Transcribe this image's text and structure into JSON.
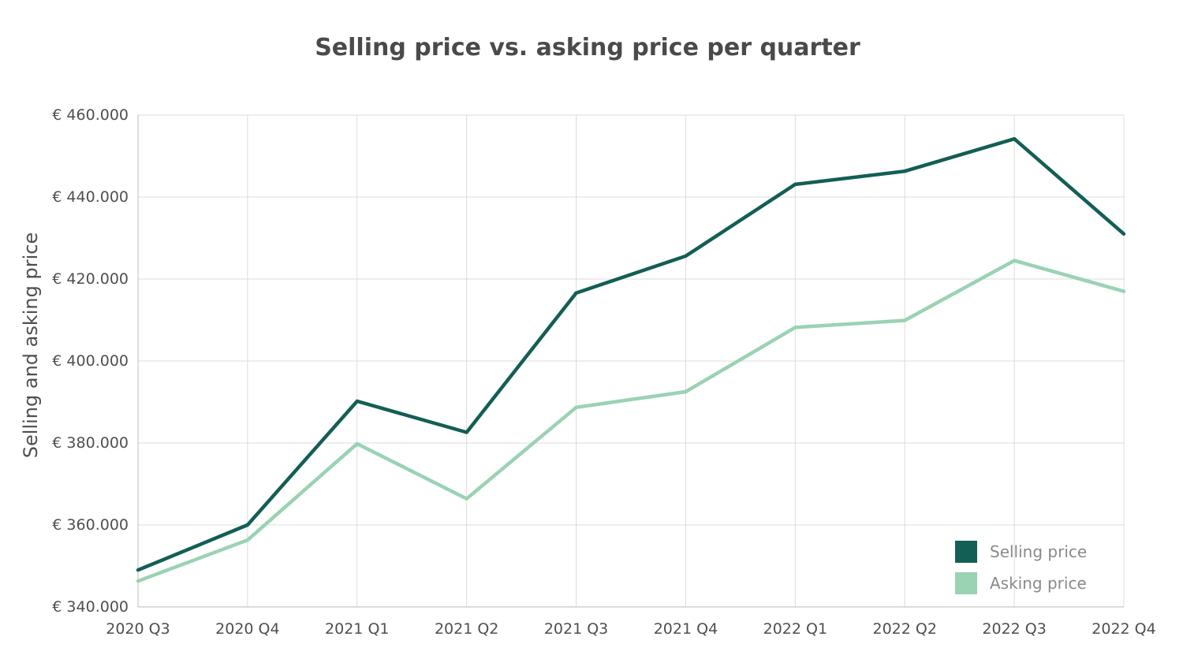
{
  "chart_data": {
    "type": "line",
    "title": "Selling price vs. asking price per quarter",
    "xlabel": "",
    "ylabel": "Selling and asking price",
    "categories": [
      "2020 Q3",
      "2020 Q4",
      "2021 Q1",
      "2021 Q2",
      "2021 Q3",
      "2021 Q4",
      "2022 Q1",
      "2022 Q2",
      "2022 Q3",
      "2022 Q4"
    ],
    "ylim": [
      340000,
      460000
    ],
    "yticks": [
      340000,
      360000,
      380000,
      400000,
      420000,
      440000,
      460000
    ],
    "ytick_labels": [
      "€ 340.000",
      "€ 360.000",
      "€ 380.000",
      "€ 400.000",
      "€ 420.000",
      "€ 440.000",
      "€ 460.000"
    ],
    "grid": true,
    "legend_position": "bottom-right",
    "series": [
      {
        "name": "Selling price",
        "color": "#135e55",
        "values": [
          349000,
          360000,
          390200,
          382600,
          416600,
          425600,
          443100,
          446300,
          454200,
          431000
        ]
      },
      {
        "name": "Asking price",
        "color": "#9ad2b4",
        "values": [
          346300,
          356300,
          379800,
          366400,
          388700,
          392500,
          408200,
          409900,
          424500,
          417000
        ]
      }
    ]
  }
}
